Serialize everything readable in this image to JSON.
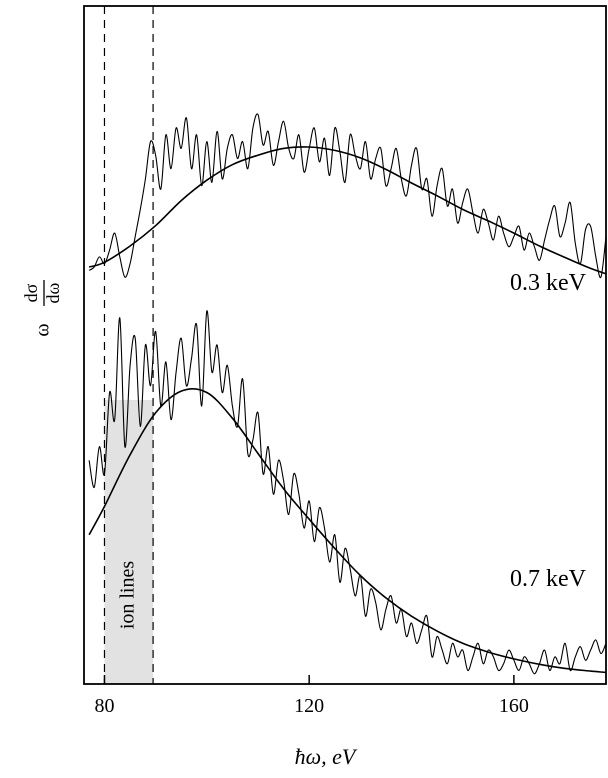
{
  "chart_data": {
    "type": "line",
    "title": "",
    "xlabel": "ħω, eV",
    "ylabel": {
      "prefix": "ω",
      "num": "dσ",
      "den": "dω"
    },
    "xlim": [
      76,
      178
    ],
    "x_ticks": [
      80,
      120,
      160
    ],
    "y_ticks": [],
    "grid": false,
    "band": {
      "x": [
        80,
        89.5
      ],
      "label": "ion lines"
    },
    "series": [
      {
        "name": "0.3 keV",
        "fit_x": [
          77,
          80,
          85,
          90,
          95,
          100,
          105,
          110,
          115,
          120,
          125,
          130,
          135,
          140,
          145,
          150,
          155,
          160,
          165,
          170,
          175,
          178
        ],
        "fit_y": [
          0.615,
          0.622,
          0.646,
          0.676,
          0.713,
          0.743,
          0.766,
          0.78,
          0.79,
          0.792,
          0.787,
          0.776,
          0.759,
          0.739,
          0.72,
          0.7,
          0.683,
          0.665,
          0.646,
          0.629,
          0.613,
          0.605
        ],
        "data_x": [
          77,
          78,
          79,
          80,
          81,
          82,
          83,
          84,
          85,
          86,
          87,
          88,
          89,
          90,
          91,
          92,
          93,
          94,
          95,
          96,
          97,
          98,
          99,
          100,
          101,
          102,
          103,
          104,
          105,
          106,
          107,
          108,
          109,
          110,
          111,
          112,
          113,
          114,
          115,
          116,
          117,
          118,
          119,
          120,
          121,
          122,
          123,
          124,
          125,
          126,
          127,
          128,
          129,
          130,
          131,
          132,
          133,
          134,
          135,
          136,
          137,
          138,
          139,
          140,
          141,
          142,
          143,
          144,
          145,
          146,
          147,
          148,
          149,
          150,
          151,
          152,
          153,
          154,
          155,
          156,
          157,
          158,
          159,
          160,
          161,
          162,
          163,
          164,
          165,
          166,
          167,
          168,
          169,
          170,
          171,
          172,
          173,
          174,
          175,
          176,
          177,
          178
        ],
        "data_y": [
          0.61,
          0.615,
          0.63,
          0.62,
          0.64,
          0.665,
          0.63,
          0.6,
          0.62,
          0.66,
          0.7,
          0.745,
          0.8,
          0.78,
          0.73,
          0.81,
          0.76,
          0.82,
          0.79,
          0.835,
          0.76,
          0.81,
          0.735,
          0.8,
          0.74,
          0.815,
          0.745,
          0.79,
          0.81,
          0.775,
          0.8,
          0.76,
          0.82,
          0.84,
          0.795,
          0.815,
          0.765,
          0.8,
          0.83,
          0.79,
          0.775,
          0.81,
          0.755,
          0.79,
          0.82,
          0.77,
          0.805,
          0.75,
          0.82,
          0.785,
          0.74,
          0.81,
          0.78,
          0.76,
          0.8,
          0.745,
          0.775,
          0.79,
          0.735,
          0.76,
          0.79,
          0.745,
          0.72,
          0.765,
          0.79,
          0.73,
          0.745,
          0.69,
          0.735,
          0.76,
          0.705,
          0.73,
          0.68,
          0.71,
          0.73,
          0.695,
          0.665,
          0.7,
          0.68,
          0.655,
          0.69,
          0.665,
          0.645,
          0.66,
          0.675,
          0.64,
          0.665,
          0.645,
          0.625,
          0.655,
          0.685,
          0.705,
          0.66,
          0.68,
          0.71,
          0.65,
          0.62,
          0.67,
          0.675,
          0.63,
          0.6,
          0.66
        ]
      },
      {
        "name": "0.7 keV",
        "fit_x": [
          77,
          80,
          85,
          90,
          95,
          100,
          105,
          110,
          115,
          120,
          125,
          130,
          135,
          140,
          145,
          150,
          155,
          160,
          165,
          170,
          175,
          178
        ],
        "fit_y": [
          0.22,
          0.262,
          0.338,
          0.4,
          0.432,
          0.43,
          0.392,
          0.34,
          0.288,
          0.243,
          0.2,
          0.16,
          0.127,
          0.1,
          0.078,
          0.06,
          0.047,
          0.037,
          0.029,
          0.023,
          0.019,
          0.017
        ],
        "data_x": [
          77,
          78,
          79,
          80,
          81,
          82,
          83,
          84,
          85,
          86,
          87,
          88,
          89,
          90,
          91,
          92,
          93,
          94,
          95,
          96,
          97,
          98,
          99,
          100,
          101,
          102,
          103,
          104,
          105,
          106,
          107,
          108,
          109,
          110,
          111,
          112,
          113,
          114,
          115,
          116,
          117,
          118,
          119,
          120,
          121,
          122,
          123,
          124,
          125,
          126,
          127,
          128,
          129,
          130,
          131,
          132,
          133,
          134,
          135,
          136,
          137,
          138,
          139,
          140,
          141,
          142,
          143,
          144,
          145,
          146,
          147,
          148,
          149,
          150,
          151,
          152,
          153,
          154,
          155,
          156,
          157,
          158,
          159,
          160,
          161,
          162,
          163,
          164,
          165,
          166,
          167,
          168,
          169,
          170,
          171,
          172,
          173,
          174,
          175,
          176,
          177,
          178
        ],
        "data_y": [
          0.33,
          0.29,
          0.35,
          0.31,
          0.43,
          0.39,
          0.54,
          0.35,
          0.47,
          0.51,
          0.38,
          0.5,
          0.44,
          0.52,
          0.41,
          0.475,
          0.39,
          0.46,
          0.51,
          0.44,
          0.48,
          0.53,
          0.41,
          0.55,
          0.46,
          0.5,
          0.43,
          0.47,
          0.41,
          0.38,
          0.45,
          0.34,
          0.36,
          0.4,
          0.31,
          0.35,
          0.28,
          0.33,
          0.3,
          0.25,
          0.31,
          0.28,
          0.23,
          0.27,
          0.21,
          0.26,
          0.23,
          0.18,
          0.22,
          0.15,
          0.2,
          0.17,
          0.13,
          0.16,
          0.1,
          0.14,
          0.12,
          0.08,
          0.11,
          0.13,
          0.09,
          0.11,
          0.07,
          0.09,
          0.06,
          0.08,
          0.1,
          0.04,
          0.07,
          0.05,
          0.03,
          0.06,
          0.04,
          0.05,
          0.02,
          0.04,
          0.06,
          0.03,
          0.05,
          0.04,
          0.02,
          0.03,
          0.05,
          0.035,
          0.02,
          0.04,
          0.03,
          0.015,
          0.03,
          0.05,
          0.02,
          0.04,
          0.03,
          0.06,
          0.02,
          0.04,
          0.055,
          0.035,
          0.05,
          0.065,
          0.045,
          0.06
        ]
      }
    ]
  }
}
